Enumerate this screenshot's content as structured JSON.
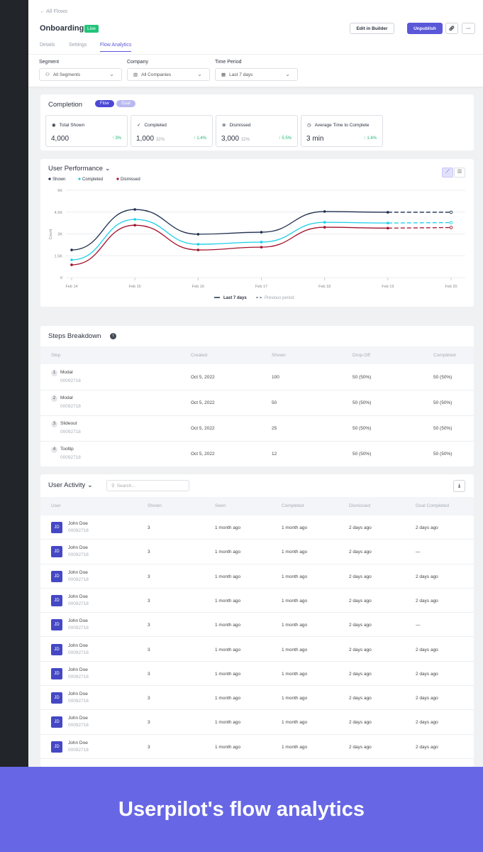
{
  "header": {
    "back_label": "All Flows",
    "title": "Onboarding",
    "status": "Live",
    "edit_label": "Edit in Builder",
    "unpublish_label": "Unpublish",
    "tabs": [
      "Details",
      "Settings",
      "Flow Analytics"
    ],
    "active_tab": "Flow Analytics"
  },
  "filters": [
    {
      "label": "Segment",
      "value": "All Segments",
      "icon": "users-icon"
    },
    {
      "label": "Company",
      "value": "All Companies",
      "icon": "building-icon"
    },
    {
      "label": "Time Period",
      "value": "Last 7 days",
      "icon": "calendar-icon"
    }
  ],
  "completion": {
    "title": "Completion",
    "toggle": [
      "Flow",
      "Goal"
    ],
    "active": "Flow",
    "stats": [
      {
        "label": "Total Shown",
        "value": "4,000",
        "pct": "",
        "change": "3%",
        "icon": "eye-icon"
      },
      {
        "label": "Completed",
        "value": "1,000",
        "pct": "32%",
        "change": "1.4%",
        "icon": "check-circle-icon"
      },
      {
        "label": "Dismissed",
        "value": "3,000",
        "pct": "32%",
        "change": "5.5%",
        "icon": "x-circle-icon"
      },
      {
        "label": "Average Time to Complete",
        "value": "3 min",
        "pct": "",
        "change": "1.4%",
        "icon": "stopwatch-icon"
      }
    ]
  },
  "chart_data": {
    "type": "line",
    "title": "User Performance",
    "ylabel": "Count",
    "ylim": [
      0,
      6000
    ],
    "yticks": [
      "0",
      "1.5K",
      "3K",
      "4.5K",
      "6K"
    ],
    "ytick_values": [
      0,
      1500,
      3000,
      4500,
      6000
    ],
    "categories": [
      "Feb 14",
      "Feb 15",
      "Feb 16",
      "Feb 17",
      "Feb 18",
      "Feb 19",
      "Feb 20"
    ],
    "series": [
      {
        "name": "Shown",
        "color": "#1e2f4d",
        "values": [
          1900,
          4680,
          2980,
          3120,
          4540,
          4490,
          4490
        ]
      },
      {
        "name": "Completed",
        "color": "#1ccfea",
        "values": [
          1220,
          4000,
          2290,
          2440,
          3800,
          3750,
          3780
        ]
      },
      {
        "name": "Dismissed",
        "color": "#a3102b",
        "values": [
          880,
          3600,
          1900,
          2090,
          3460,
          3400,
          3440
        ]
      }
    ],
    "legend_position": "top-left",
    "grid": true,
    "period_legend": [
      "Last 7 days",
      "Previous period"
    ],
    "previous_period_from": "Feb 19"
  },
  "steps": {
    "title": "Steps Breakdown",
    "columns": [
      "Step",
      "Created",
      "Shown",
      "Drop-Off",
      "Completed"
    ],
    "rows": [
      {
        "n": "1",
        "name": "Modal",
        "id": "00092718",
        "created": "Oct 5, 2022",
        "shown": "100",
        "dropoff": "50 (50%)",
        "completed": "50 (50%)"
      },
      {
        "n": "2",
        "name": "Modal",
        "id": "00092718",
        "created": "Oct 5, 2022",
        "shown": "50",
        "dropoff": "50 (50%)",
        "completed": "50 (50%)"
      },
      {
        "n": "3",
        "name": "Slideout",
        "id": "00092718",
        "created": "Oct 5, 2022",
        "shown": "25",
        "dropoff": "50 (50%)",
        "completed": "50 (50%)"
      },
      {
        "n": "4",
        "name": "Tooltip",
        "id": "00092718",
        "created": "Oct 5, 2022",
        "shown": "12",
        "dropoff": "50 (50%)",
        "completed": "50 (50%)"
      }
    ]
  },
  "activity": {
    "title": "User Activity",
    "search_placeholder": "Search...",
    "columns": [
      "User",
      "Shown",
      "Seen",
      "Completed",
      "Dismissed",
      "Goal Completed"
    ],
    "rows": [
      {
        "initials": "JD",
        "name": "John Doe",
        "id": "00092718",
        "shown": "3",
        "seen": "1 month ago",
        "completed": "1 month ago",
        "dismissed": "2 days ago",
        "goal": "2 days ago"
      },
      {
        "initials": "JD",
        "name": "John Doe",
        "id": "00092718",
        "shown": "3",
        "seen": "1 month ago",
        "completed": "1 month ago",
        "dismissed": "2 days ago",
        "goal": "—"
      },
      {
        "initials": "JD",
        "name": "John Doe",
        "id": "00092718",
        "shown": "3",
        "seen": "1 month ago",
        "completed": "1 month ago",
        "dismissed": "2 days ago",
        "goal": "2 days ago"
      },
      {
        "initials": "JD",
        "name": "John Doe",
        "id": "00092718",
        "shown": "3",
        "seen": "1 month ago",
        "completed": "1 month ago",
        "dismissed": "2 days ago",
        "goal": "2 days ago"
      },
      {
        "initials": "JD",
        "name": "John Doe",
        "id": "00092718",
        "shown": "3",
        "seen": "1 month ago",
        "completed": "1 month ago",
        "dismissed": "2 days ago",
        "goal": "—"
      },
      {
        "initials": "JD",
        "name": "John Doe",
        "id": "00092718",
        "shown": "3",
        "seen": "1 month ago",
        "completed": "1 month ago",
        "dismissed": "2 days ago",
        "goal": "2 days ago"
      },
      {
        "initials": "JD",
        "name": "John Doe",
        "id": "00092718",
        "shown": "3",
        "seen": "1 month ago",
        "completed": "1 month ago",
        "dismissed": "2 days ago",
        "goal": "2 days ago"
      },
      {
        "initials": "JD",
        "name": "John Doe",
        "id": "00092718",
        "shown": "3",
        "seen": "1 month ago",
        "completed": "1 month ago",
        "dismissed": "2 days ago",
        "goal": "2 days ago"
      },
      {
        "initials": "JD",
        "name": "John Doe",
        "id": "00092718",
        "shown": "3",
        "seen": "1 month ago",
        "completed": "1 month ago",
        "dismissed": "2 days ago",
        "goal": "2 days ago"
      },
      {
        "initials": "JD",
        "name": "John Doe",
        "id": "00092718",
        "shown": "3",
        "seen": "1 month ago",
        "completed": "1 month ago",
        "dismissed": "2 days ago",
        "goal": "2 days ago"
      }
    ]
  },
  "banner": {
    "text": "Userpilot's flow analytics"
  },
  "colors": {
    "accent": "#5a57d9",
    "live": "#22c47a",
    "banner": "#6767e6",
    "sidebar": "#222529"
  }
}
